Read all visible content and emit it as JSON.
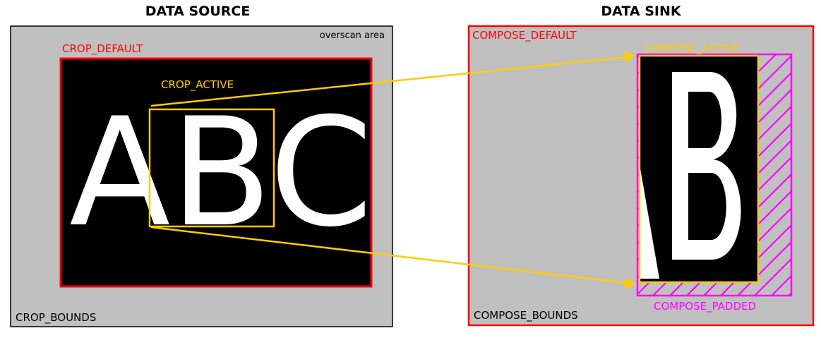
{
  "source": {
    "title": "DATA SOURCE",
    "overscan_label": "overscan area",
    "crop_default_label": "CROP_DEFAULT",
    "crop_active_label": "CROP_ACTIVE",
    "crop_bounds_label": "CROP_BOUNDS",
    "image_text": "ABC"
  },
  "sink": {
    "title": "DATA SINK",
    "compose_default_label": "COMPOSE_DEFAULT",
    "compose_active_label": "COMPOSE_ACTIVE",
    "compose_padded_label": "COMPOSE_PADDED",
    "compose_bounds_label": "COMPOSE_BOUNDS"
  },
  "colors": {
    "default": "#ff0000",
    "active": "#ffcc00",
    "padded": "#ff00ff",
    "area": "#c0c0c0",
    "image": "#000000",
    "glyph": "#ffffff"
  }
}
